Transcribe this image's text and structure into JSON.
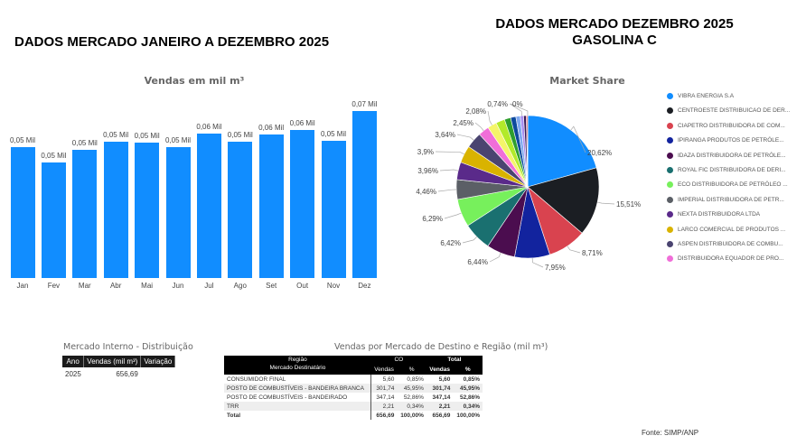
{
  "titles": {
    "left": "DADOS MERCADO JANEIRO A DEZEMBRO 2025",
    "right_line1": "DADOS MERCADO DEZEMBRO 2025",
    "right_line2": "GASOLINA C"
  },
  "chart_data": [
    {
      "type": "bar",
      "title": "Vendas  em mil m³",
      "categories": [
        "Jan",
        "Fev",
        "Mar",
        "Abr",
        "Mai",
        "Jun",
        "Jul",
        "Ago",
        "Set",
        "Out",
        "Nov",
        "Dez"
      ],
      "values": [
        0.052,
        0.046,
        0.0508,
        0.054,
        0.0537,
        0.0521,
        0.0574,
        0.0541,
        0.0569,
        0.0589,
        0.0546,
        0.0663
      ],
      "labels": [
        "0,05 Mil",
        "0,05 Mil",
        "0,05 Mil",
        "0,05 Mil",
        "0,05 Mil",
        "0,05 Mil",
        "0,06 Mil",
        "0,05 Mil",
        "0,06 Mil",
        "0,06 Mil",
        "0,05 Mil",
        "0,07 Mil"
      ],
      "color": "#118dff",
      "ylim": [
        0,
        0.07
      ]
    },
    {
      "type": "pie",
      "title": "Market Share",
      "slices": [
        {
          "name": "VIBRA ENERGIA S.A",
          "value": 20.62,
          "label": "20,62%",
          "color": "#118dff"
        },
        {
          "name": "CENTROESTE DISTRIBUICAO DE DER...",
          "value": 15.51,
          "label": "15,51%",
          "color": "#1b1e23"
        },
        {
          "name": "CIAPETRO DISTRIBUIDORA DE COM...",
          "value": 8.71,
          "label": "8,71%",
          "color": "#d9434f"
        },
        {
          "name": "IPIRANGA PRODUTOS DE PETRÓLE...",
          "value": 7.95,
          "label": "7,95%",
          "color": "#12239e"
        },
        {
          "name": "IDAZA DISTRIBUIDORA DE PETRÓLE...",
          "value": 6.44,
          "label": "6,44%",
          "color": "#4b0d4f"
        },
        {
          "name": "ROYAL FIC DISTRIBUIDORA DE DERI...",
          "value": 6.42,
          "label": "6,42%",
          "color": "#1a7070"
        },
        {
          "name": "ECO DISTRIBUIDORA DE PETRÓLEO ...",
          "value": 6.29,
          "label": "6,29%",
          "color": "#77f05c"
        },
        {
          "name": "IMPERIAL DISTRIBUIDORA DE PETR...",
          "value": 4.46,
          "label": "4,46%",
          "color": "#5b5f66"
        },
        {
          "name": "NEXTA DISTRIBUIDORA LTDA",
          "value": 3.96,
          "label": "3,96%",
          "color": "#5a2a8a"
        },
        {
          "name": "LARCO COMERCIAL DE PRODUTOS ...",
          "value": 3.9,
          "label": "3,9%",
          "color": "#d9b300"
        },
        {
          "name": "ASPEN DISTRIBUIDORA DE COMBU...",
          "value": 3.64,
          "label": "3,64%",
          "color": "#4a4470"
        },
        {
          "name": "DISTRIBUIDORA EQUADOR DE PRO...",
          "value": 2.45,
          "label": "2,45%",
          "color": "#f06ed8"
        },
        {
          "name": "",
          "value": 2.08,
          "label": "2,08%",
          "color": "#f5f56a"
        },
        {
          "name": "",
          "value": 2.0,
          "label": "",
          "color": "#b2ea2a"
        },
        {
          "name": "",
          "value": 1.4,
          "label": "",
          "color": "#2e9e2e"
        },
        {
          "name": "",
          "value": 1.2,
          "label": "",
          "color": "#0e4a9e"
        },
        {
          "name": "",
          "value": 1.0,
          "label": "",
          "color": "#7fa8f0"
        },
        {
          "name": "",
          "value": 0.74,
          "label": "0,74%",
          "color": "#a88ef0"
        },
        {
          "name": "",
          "value": 0.6,
          "label": "",
          "color": "#3a1a5a"
        },
        {
          "name": "",
          "value": 0.3,
          "label": "",
          "color": "#e04040"
        },
        {
          "name": "",
          "value": 0.02,
          "label": "0%",
          "color": "#555555"
        }
      ]
    }
  ],
  "left_table": {
    "title": "Mercado Interno - Distribuição",
    "headers": [
      "Ano",
      "Vendas (mil m³)",
      "Variação"
    ],
    "rows": [
      [
        "2025",
        "656,69",
        ""
      ]
    ]
  },
  "right_table": {
    "title": "Vendas por Mercado de Destino e Região (mil m³)",
    "head1": [
      "Região",
      "CO",
      "Total"
    ],
    "head2": [
      "Mercado Destinatário",
      "Vendas",
      "%",
      "Vendas",
      "%"
    ],
    "rows": [
      [
        "CONSUMIDOR FINAL",
        "5,60",
        "0,85%",
        "5,60",
        "0,85%"
      ],
      [
        "POSTO DE COMBUSTÍVEIS - BANDEIRA BRANCA",
        "301,74",
        "45,95%",
        "301,74",
        "45,95%"
      ],
      [
        "POSTO DE COMBUSTÍVEIS - BANDEIRADO",
        "347,14",
        "52,86%",
        "347,14",
        "52,86%"
      ],
      [
        "TRR",
        "2,21",
        "0,34%",
        "2,21",
        "0,34%"
      ],
      [
        "Total",
        "656,69",
        "100,00%",
        "656,69",
        "100,00%"
      ]
    ]
  },
  "source": "Fonte: SIMP/ANP"
}
